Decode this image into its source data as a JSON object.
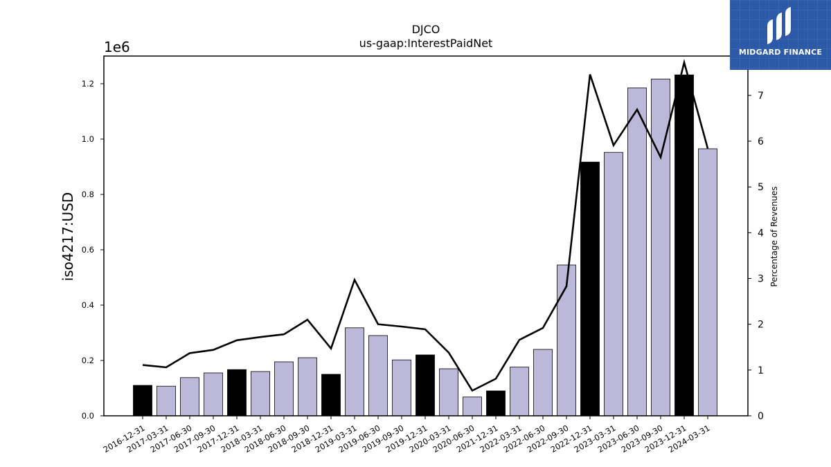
{
  "chart_data": {
    "type": "bar",
    "title": "DJCO",
    "subtitle": "us-gaap:InterestPaidNet",
    "ylabel": "iso4217:USD",
    "y2label": "Percentage of Revenues",
    "y_multiplier_label": "1e6",
    "ylim": [
      0,
      1.3
    ],
    "y2lim": [
      0,
      7.86
    ],
    "yticks": [
      "0.0",
      "0.2",
      "0.4",
      "0.6",
      "0.8",
      "1.0",
      "1.2"
    ],
    "y2ticks": [
      "0",
      "1",
      "2",
      "3",
      "4",
      "5",
      "6",
      "7"
    ],
    "categories": [
      "2016-12-31",
      "2017-03-31",
      "2017-06-30",
      "2017-09-30",
      "2017-12-31",
      "2018-03-31",
      "2018-06-30",
      "2018-09-30",
      "2018-12-31",
      "2019-03-31",
      "2019-06-30",
      "2019-09-30",
      "2019-12-31",
      "2020-03-31",
      "2020-06-30",
      "2021-12-31",
      "2022-03-31",
      "2022-06-30",
      "2022-09-30",
      "2022-12-31",
      "2023-03-31",
      "2023-06-30",
      "2023-09-30",
      "2023-12-31",
      "2024-03-31"
    ],
    "series": [
      {
        "values": [
          0.11,
          0.107,
          0.138,
          0.155,
          0.167,
          0.16,
          0.195,
          0.21,
          0.15,
          0.318,
          0.29,
          0.202,
          0.22,
          0.17,
          0.068,
          0.09,
          0.176,
          0.24,
          0.545,
          0.917,
          0.952,
          1.185,
          1.217,
          1.232,
          0.965
        ],
        "highlight": [
          true,
          false,
          false,
          false,
          true,
          false,
          false,
          false,
          true,
          false,
          false,
          false,
          true,
          false,
          false,
          true,
          false,
          false,
          false,
          true,
          false,
          false,
          false,
          true,
          false
        ]
      },
      {
        "axis": "right",
        "type": "line",
        "values": [
          1.11,
          1.06,
          1.37,
          1.44,
          1.65,
          1.72,
          1.78,
          2.1,
          1.47,
          2.97,
          2.0,
          1.95,
          1.89,
          1.38,
          0.55,
          0.81,
          1.66,
          1.92,
          2.83,
          7.46,
          5.91,
          6.69,
          5.65,
          7.72,
          5.84
        ]
      }
    ],
    "colors": {
      "bar": "#bcb8d9",
      "bar_highlight": "#000000",
      "line": "#000000"
    },
    "grid": false
  },
  "logo": {
    "text": "MIDGARD FINANCE",
    "icon": "midgard-logo-icon"
  }
}
